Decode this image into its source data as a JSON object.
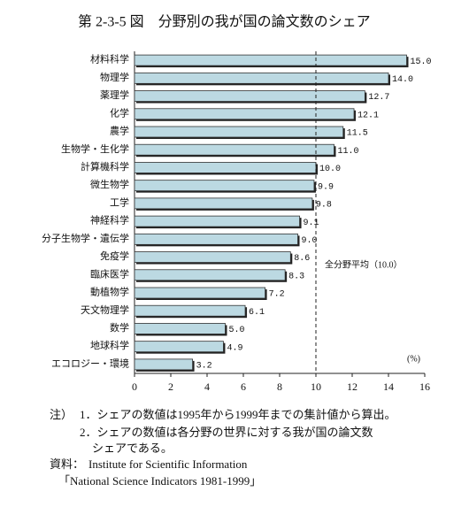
{
  "chart_data": {
    "type": "barh",
    "title": "第 2-3-5 図　分野別の我が国の論文数のシェア",
    "categories": [
      "材料科学",
      "物理学",
      "薬理学",
      "化学",
      "農学",
      "生物学・生化学",
      "計算機科学",
      "微生物学",
      "工学",
      "神経科学",
      "分子生物学・遺伝学",
      "免疫学",
      "臨床医学",
      "動植物学",
      "天文物理学",
      "数学",
      "地球科学",
      "エコロジー・環境"
    ],
    "values": [
      15.0,
      14.0,
      12.7,
      12.1,
      11.5,
      11.0,
      10.0,
      9.9,
      9.8,
      9.1,
      9.0,
      8.6,
      8.3,
      7.2,
      6.1,
      5.0,
      4.9,
      3.2
    ],
    "value_labels": [
      "15.0",
      "14.0",
      "12.7",
      "12.1",
      "11.5",
      "11.0",
      "10.0",
      "9.9",
      "9.8",
      "9.1",
      "9.0",
      "8.6",
      "8.3",
      "7.2",
      "6.1",
      "5.0",
      "4.9",
      "3.2"
    ],
    "color": "#bcd9e2",
    "xlim": [
      0,
      16
    ],
    "xticks": [
      0,
      2,
      4,
      6,
      8,
      10,
      12,
      14,
      16
    ],
    "unit_label": "(%)",
    "reference_line": {
      "value": 10.0,
      "label": "全分野平均（10.0）"
    },
    "notes_label": "注）",
    "notes": [
      "1．シェアの数値は1995年から1999年までの集計値から算出。",
      "2．シェアの数値は各分野の世界に対する我が国の論文数",
      "シェアである。"
    ],
    "source_label": "資料：",
    "source": [
      "Institute for Scientific Information",
      "「National Science Indicators 1981-1999」"
    ]
  }
}
